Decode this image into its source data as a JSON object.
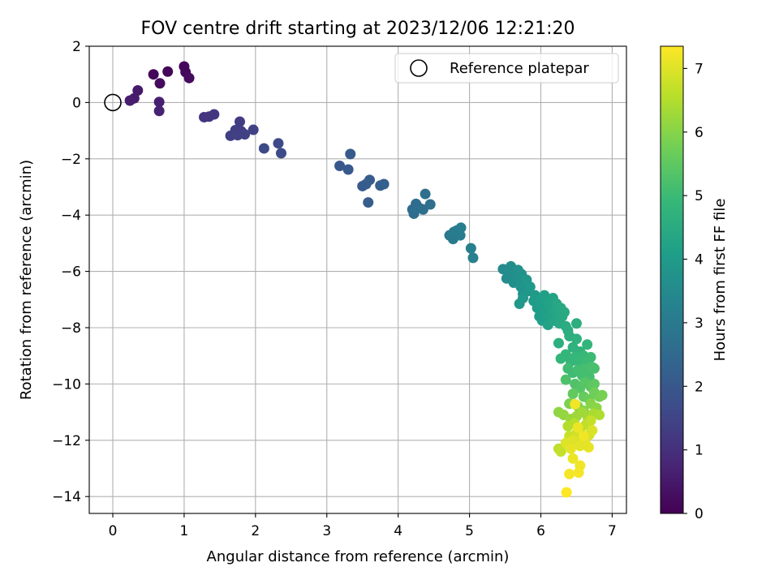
{
  "chart_data": {
    "type": "scatter",
    "title": "FOV centre drift starting at 2023/12/06 12:21:20",
    "xlabel": "Angular distance from reference (arcmin)",
    "ylabel": "Rotation from reference (arcmin)",
    "xlim": [
      -0.33,
      7.2
    ],
    "ylim": [
      -14.6,
      2.0
    ],
    "xticks": [
      0,
      1,
      2,
      3,
      4,
      5,
      6,
      7
    ],
    "yticks": [
      2,
      0,
      -2,
      -4,
      -6,
      -8,
      -10,
      -12,
      -14
    ],
    "grid": true,
    "legend": {
      "position": "top-right",
      "entries": [
        "Reference platepar"
      ]
    },
    "reference_point": {
      "x": 0,
      "y": 0
    },
    "colorbar": {
      "label": "Hours from first FF file",
      "colormap": "viridis",
      "range": [
        0,
        7.35
      ],
      "ticks": [
        0,
        1,
        2,
        3,
        4,
        5,
        6,
        7
      ]
    },
    "points": [
      {
        "x": 0.57,
        "y": 1.0,
        "h": 0.1
      },
      {
        "x": 0.77,
        "y": 1.1,
        "h": 0.12
      },
      {
        "x": 1.0,
        "y": 1.28,
        "h": 0.15
      },
      {
        "x": 1.02,
        "y": 1.08,
        "h": 0.17
      },
      {
        "x": 1.07,
        "y": 0.87,
        "h": 0.2
      },
      {
        "x": 0.66,
        "y": 0.68,
        "h": 0.22
      },
      {
        "x": 0.35,
        "y": 0.43,
        "h": 0.5
      },
      {
        "x": 0.3,
        "y": 0.15,
        "h": 0.55
      },
      {
        "x": 0.24,
        "y": 0.07,
        "h": 0.6
      },
      {
        "x": 0.65,
        "y": 0.02,
        "h": 0.65
      },
      {
        "x": 0.65,
        "y": -0.3,
        "h": 0.7
      },
      {
        "x": 1.28,
        "y": -0.52,
        "h": 1.1
      },
      {
        "x": 1.35,
        "y": -0.5,
        "h": 1.15
      },
      {
        "x": 1.42,
        "y": -0.42,
        "h": 1.2
      },
      {
        "x": 1.78,
        "y": -0.68,
        "h": 1.3
      },
      {
        "x": 1.72,
        "y": -0.98,
        "h": 1.35
      },
      {
        "x": 1.8,
        "y": -1.02,
        "h": 1.35
      },
      {
        "x": 1.65,
        "y": -1.18,
        "h": 1.4
      },
      {
        "x": 1.75,
        "y": -1.16,
        "h": 1.4
      },
      {
        "x": 1.85,
        "y": -1.13,
        "h": 1.45
      },
      {
        "x": 1.97,
        "y": -0.97,
        "h": 1.45
      },
      {
        "x": 2.12,
        "y": -1.63,
        "h": 1.6
      },
      {
        "x": 2.32,
        "y": -1.45,
        "h": 1.62
      },
      {
        "x": 2.36,
        "y": -1.8,
        "h": 1.65
      },
      {
        "x": 3.18,
        "y": -2.25,
        "h": 2.0
      },
      {
        "x": 3.3,
        "y": -2.38,
        "h": 2.05
      },
      {
        "x": 3.33,
        "y": -1.83,
        "h": 2.05
      },
      {
        "x": 3.5,
        "y": -2.97,
        "h": 2.1
      },
      {
        "x": 3.55,
        "y": -2.9,
        "h": 2.12
      },
      {
        "x": 3.6,
        "y": -2.75,
        "h": 2.15
      },
      {
        "x": 3.58,
        "y": -3.55,
        "h": 2.15
      },
      {
        "x": 3.75,
        "y": -2.95,
        "h": 2.2
      },
      {
        "x": 3.8,
        "y": -2.9,
        "h": 2.2
      },
      {
        "x": 4.2,
        "y": -3.8,
        "h": 2.6
      },
      {
        "x": 4.22,
        "y": -3.95,
        "h": 2.6
      },
      {
        "x": 4.25,
        "y": -3.6,
        "h": 2.62
      },
      {
        "x": 4.3,
        "y": -3.75,
        "h": 2.64
      },
      {
        "x": 4.35,
        "y": -3.8,
        "h": 2.66
      },
      {
        "x": 4.38,
        "y": -3.25,
        "h": 2.68
      },
      {
        "x": 4.45,
        "y": -3.62,
        "h": 2.7
      },
      {
        "x": 4.72,
        "y": -4.72,
        "h": 3.0
      },
      {
        "x": 4.77,
        "y": -4.85,
        "h": 3.02
      },
      {
        "x": 4.78,
        "y": -4.6,
        "h": 3.04
      },
      {
        "x": 4.82,
        "y": -4.55,
        "h": 3.06
      },
      {
        "x": 4.87,
        "y": -4.72,
        "h": 3.08
      },
      {
        "x": 4.88,
        "y": -4.45,
        "h": 3.1
      },
      {
        "x": 5.02,
        "y": -5.18,
        "h": 3.2
      },
      {
        "x": 5.05,
        "y": -5.52,
        "h": 3.22
      },
      {
        "x": 5.47,
        "y": -5.92,
        "h": 3.5
      },
      {
        "x": 5.52,
        "y": -6.25,
        "h": 3.55
      },
      {
        "x": 5.55,
        "y": -6.0,
        "h": 3.55
      },
      {
        "x": 5.58,
        "y": -5.82,
        "h": 3.6
      },
      {
        "x": 5.6,
        "y": -6.15,
        "h": 3.6
      },
      {
        "x": 5.62,
        "y": -6.4,
        "h": 3.65
      },
      {
        "x": 5.65,
        "y": -6.05,
        "h": 3.65
      },
      {
        "x": 5.68,
        "y": -5.95,
        "h": 3.7
      },
      {
        "x": 5.7,
        "y": -6.3,
        "h": 3.7
      },
      {
        "x": 5.72,
        "y": -6.55,
        "h": 3.75
      },
      {
        "x": 5.73,
        "y": -6.1,
        "h": 3.75
      },
      {
        "x": 5.75,
        "y": -6.8,
        "h": 3.8
      },
      {
        "x": 5.78,
        "y": -6.45,
        "h": 3.8
      },
      {
        "x": 5.8,
        "y": -6.3,
        "h": 3.85
      },
      {
        "x": 5.82,
        "y": -6.7,
        "h": 3.85
      },
      {
        "x": 5.7,
        "y": -7.15,
        "h": 3.9
      },
      {
        "x": 5.75,
        "y": -6.95,
        "h": 3.9
      },
      {
        "x": 5.85,
        "y": -6.55,
        "h": 3.95
      },
      {
        "x": 5.9,
        "y": -7.05,
        "h": 4.0
      },
      {
        "x": 5.92,
        "y": -6.85,
        "h": 4.0
      },
      {
        "x": 5.95,
        "y": -7.3,
        "h": 4.05
      },
      {
        "x": 5.98,
        "y": -7.6,
        "h": 4.05
      },
      {
        "x": 6.0,
        "y": -7.0,
        "h": 4.1
      },
      {
        "x": 6.02,
        "y": -7.75,
        "h": 4.1
      },
      {
        "x": 6.04,
        "y": -7.2,
        "h": 4.12
      },
      {
        "x": 6.05,
        "y": -6.85,
        "h": 4.15
      },
      {
        "x": 6.08,
        "y": -7.45,
        "h": 4.15
      },
      {
        "x": 6.1,
        "y": -7.9,
        "h": 4.2
      },
      {
        "x": 6.12,
        "y": -7.1,
        "h": 4.2
      },
      {
        "x": 6.14,
        "y": -7.6,
        "h": 4.22
      },
      {
        "x": 6.15,
        "y": -7.3,
        "h": 4.25
      },
      {
        "x": 6.17,
        "y": -6.95,
        "h": 4.25
      },
      {
        "x": 6.19,
        "y": -7.75,
        "h": 4.3
      },
      {
        "x": 6.2,
        "y": -7.4,
        "h": 4.3
      },
      {
        "x": 6.22,
        "y": -7.15,
        "h": 4.35
      },
      {
        "x": 6.24,
        "y": -7.55,
        "h": 4.35
      },
      {
        "x": 6.26,
        "y": -7.85,
        "h": 4.4
      },
      {
        "x": 6.28,
        "y": -7.3,
        "h": 4.4
      },
      {
        "x": 6.3,
        "y": -7.6,
        "h": 4.45
      },
      {
        "x": 6.33,
        "y": -7.45,
        "h": 4.45
      },
      {
        "x": 6.35,
        "y": -7.95,
        "h": 4.5
      },
      {
        "x": 6.38,
        "y": -8.1,
        "h": 4.55
      },
      {
        "x": 6.25,
        "y": -8.55,
        "h": 4.6
      },
      {
        "x": 6.4,
        "y": -8.3,
        "h": 4.6
      },
      {
        "x": 6.5,
        "y": -7.85,
        "h": 4.6
      },
      {
        "x": 6.45,
        "y": -8.7,
        "h": 4.7
      },
      {
        "x": 6.5,
        "y": -8.4,
        "h": 4.7
      },
      {
        "x": 6.55,
        "y": -8.85,
        "h": 4.75
      },
      {
        "x": 6.65,
        "y": -8.6,
        "h": 4.8
      },
      {
        "x": 6.28,
        "y": -9.1,
        "h": 4.85
      },
      {
        "x": 6.35,
        "y": -8.95,
        "h": 4.85
      },
      {
        "x": 6.42,
        "y": -9.2,
        "h": 4.9
      },
      {
        "x": 6.48,
        "y": -9.05,
        "h": 4.9
      },
      {
        "x": 6.55,
        "y": -9.3,
        "h": 4.95
      },
      {
        "x": 6.6,
        "y": -9.0,
        "h": 4.95
      },
      {
        "x": 6.65,
        "y": -9.2,
        "h": 5.0
      },
      {
        "x": 6.7,
        "y": -9.05,
        "h": 5.0
      },
      {
        "x": 6.38,
        "y": -9.45,
        "h": 5.05
      },
      {
        "x": 6.45,
        "y": -9.6,
        "h": 5.05
      },
      {
        "x": 6.52,
        "y": -9.5,
        "h": 5.1
      },
      {
        "x": 6.58,
        "y": -9.7,
        "h": 5.1
      },
      {
        "x": 6.62,
        "y": -9.45,
        "h": 5.15
      },
      {
        "x": 6.68,
        "y": -9.75,
        "h": 5.15
      },
      {
        "x": 6.72,
        "y": -9.4,
        "h": 5.2
      },
      {
        "x": 6.75,
        "y": -9.45,
        "h": 5.2
      },
      {
        "x": 6.35,
        "y": -9.85,
        "h": 5.25
      },
      {
        "x": 6.48,
        "y": -10.0,
        "h": 5.3
      },
      {
        "x": 6.55,
        "y": -10.15,
        "h": 5.35
      },
      {
        "x": 6.62,
        "y": -9.95,
        "h": 5.4
      },
      {
        "x": 6.7,
        "y": -10.1,
        "h": 5.45
      },
      {
        "x": 6.75,
        "y": -10.0,
        "h": 5.5
      },
      {
        "x": 6.45,
        "y": -10.35,
        "h": 5.55
      },
      {
        "x": 6.6,
        "y": -10.45,
        "h": 5.6
      },
      {
        "x": 6.68,
        "y": -10.55,
        "h": 5.65
      },
      {
        "x": 6.75,
        "y": -10.3,
        "h": 5.7
      },
      {
        "x": 6.82,
        "y": -10.45,
        "h": 5.75
      },
      {
        "x": 6.86,
        "y": -10.4,
        "h": 5.8
      },
      {
        "x": 6.4,
        "y": -10.7,
        "h": 5.85
      },
      {
        "x": 6.52,
        "y": -10.8,
        "h": 5.9
      },
      {
        "x": 6.6,
        "y": -10.95,
        "h": 5.95
      },
      {
        "x": 6.7,
        "y": -10.7,
        "h": 6.0
      },
      {
        "x": 6.78,
        "y": -10.85,
        "h": 6.05
      },
      {
        "x": 6.25,
        "y": -11.0,
        "h": 6.1
      },
      {
        "x": 6.32,
        "y": -11.1,
        "h": 6.15
      },
      {
        "x": 6.42,
        "y": -11.25,
        "h": 6.2
      },
      {
        "x": 6.5,
        "y": -11.15,
        "h": 6.25
      },
      {
        "x": 6.58,
        "y": -11.0,
        "h": 6.3
      },
      {
        "x": 6.66,
        "y": -11.2,
        "h": 6.35
      },
      {
        "x": 6.74,
        "y": -11.05,
        "h": 6.4
      },
      {
        "x": 6.82,
        "y": -11.1,
        "h": 6.45
      },
      {
        "x": 6.38,
        "y": -11.5,
        "h": 6.5
      },
      {
        "x": 6.47,
        "y": -11.4,
        "h": 6.55
      },
      {
        "x": 6.55,
        "y": -11.6,
        "h": 6.6
      },
      {
        "x": 6.63,
        "y": -11.45,
        "h": 6.65
      },
      {
        "x": 6.7,
        "y": -11.3,
        "h": 6.7
      },
      {
        "x": 6.4,
        "y": -11.85,
        "h": 6.75
      },
      {
        "x": 6.5,
        "y": -11.75,
        "h": 6.8
      },
      {
        "x": 6.58,
        "y": -11.95,
        "h": 6.85
      },
      {
        "x": 6.68,
        "y": -11.8,
        "h": 6.9
      },
      {
        "x": 6.72,
        "y": -11.65,
        "h": 6.95
      },
      {
        "x": 6.35,
        "y": -12.1,
        "h": 7.0
      },
      {
        "x": 6.45,
        "y": -12.0,
        "h": 7.0
      },
      {
        "x": 6.55,
        "y": -12.2,
        "h": 7.05
      },
      {
        "x": 6.62,
        "y": -12.05,
        "h": 7.05
      },
      {
        "x": 6.67,
        "y": -12.25,
        "h": 7.1
      },
      {
        "x": 6.42,
        "y": -12.3,
        "h": 7.1
      },
      {
        "x": 6.25,
        "y": -12.3,
        "h": 6.6
      },
      {
        "x": 6.28,
        "y": -12.4,
        "h": 6.7
      },
      {
        "x": 6.48,
        "y": -10.72,
        "h": 7.2
      },
      {
        "x": 6.52,
        "y": -11.55,
        "h": 7.15
      },
      {
        "x": 6.6,
        "y": -11.85,
        "h": 7.2
      },
      {
        "x": 6.45,
        "y": -12.65,
        "h": 7.15
      },
      {
        "x": 6.55,
        "y": -12.9,
        "h": 7.2
      },
      {
        "x": 6.4,
        "y": -13.2,
        "h": 7.25
      },
      {
        "x": 6.53,
        "y": -13.15,
        "h": 7.25
      },
      {
        "x": 6.36,
        "y": -13.85,
        "h": 7.35
      }
    ]
  }
}
